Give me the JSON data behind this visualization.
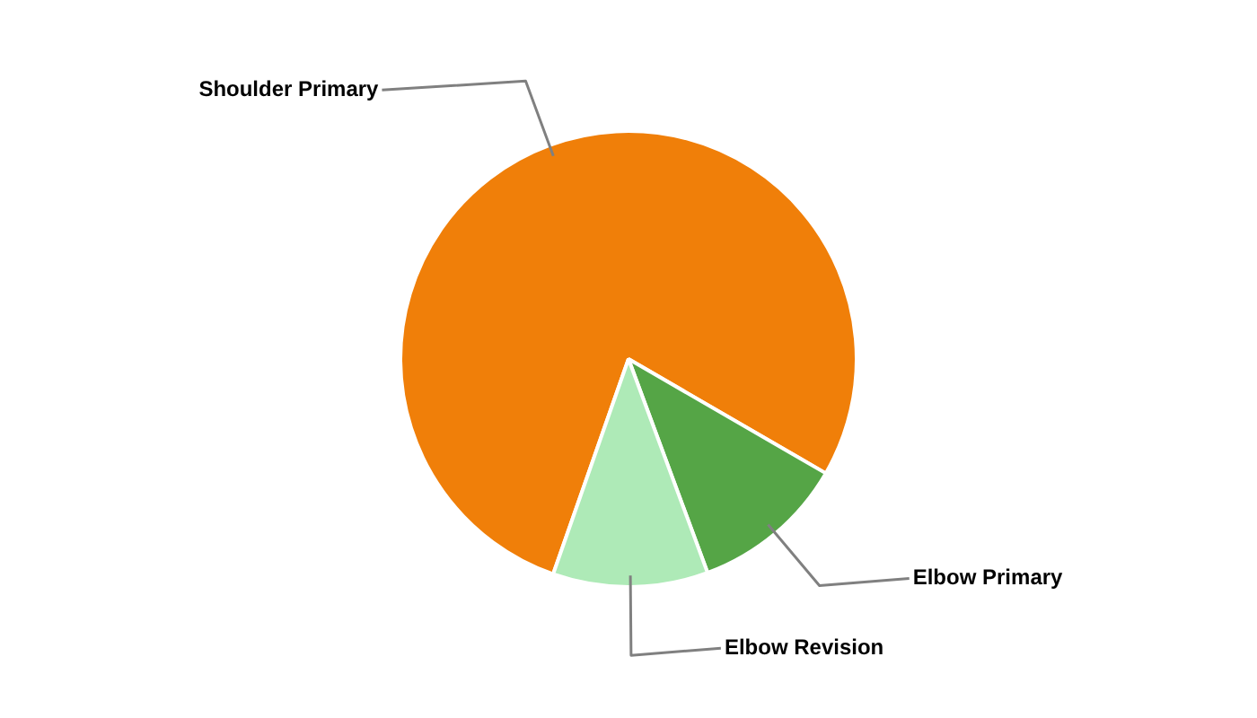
{
  "chart_data": {
    "type": "pie",
    "categories": [
      "Shoulder Primary",
      "Elbow Primary",
      "Elbow Revision"
    ],
    "values": [
      78,
      11,
      11
    ],
    "colors": [
      "#f07f09",
      "#55a546",
      "#aeeab7"
    ],
    "legend": false
  }
}
